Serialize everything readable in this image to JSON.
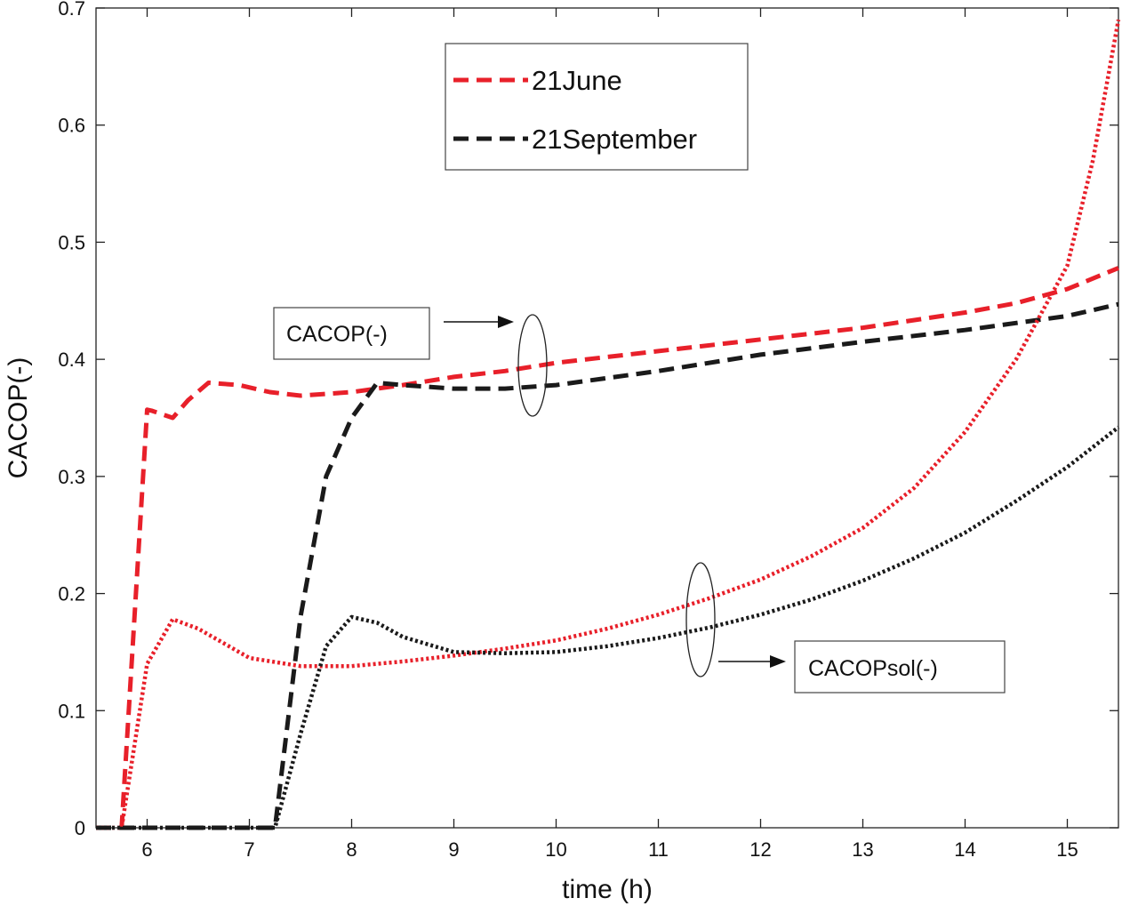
{
  "chart_data": {
    "type": "line",
    "title": "",
    "xlabel": "time (h)",
    "ylabel": "CACOP(-)",
    "xlim": [
      5.5,
      15.5
    ],
    "ylim": [
      0,
      0.7
    ],
    "xticks": [
      6,
      7,
      8,
      9,
      10,
      11,
      12,
      13,
      14,
      15
    ],
    "yticks": [
      0,
      0.1,
      0.2,
      0.3,
      0.4,
      0.5,
      0.6,
      0.7
    ],
    "ytick_labels": [
      "0",
      "0.1",
      "0.2",
      "0.3",
      "0.4",
      "0.5",
      "0.6",
      "0.7"
    ],
    "grid": false,
    "legend_position": "top-center",
    "legend": [
      {
        "label": "21June",
        "color": "#e8202a",
        "style": "dashed"
      },
      {
        "label": "21September",
        "color": "#1a1a1a",
        "style": "dashed"
      }
    ],
    "annotations": [
      {
        "label": "CACOP(-)",
        "points_to": "dashed curves near t=9.75"
      },
      {
        "label": "CACOPsol(-)",
        "points_to": "dotted curves near t=11.4"
      }
    ],
    "series": [
      {
        "name": "CACOP 21June",
        "color": "#e8202a",
        "style": "dashed",
        "x": [
          5.5,
          5.75,
          6.0,
          6.05,
          6.25,
          6.4,
          6.6,
          6.9,
          7.2,
          7.5,
          8.0,
          8.5,
          9.0,
          9.5,
          10.0,
          11.0,
          12.0,
          13.0,
          14.0,
          14.5,
          15.0,
          15.5
        ],
        "y": [
          0.0,
          0.0,
          0.357,
          0.356,
          0.35,
          0.365,
          0.38,
          0.378,
          0.372,
          0.369,
          0.372,
          0.378,
          0.385,
          0.39,
          0.397,
          0.407,
          0.417,
          0.427,
          0.44,
          0.448,
          0.46,
          0.478
        ]
      },
      {
        "name": "CACOP 21September",
        "color": "#1a1a1a",
        "style": "dashed",
        "x": [
          5.5,
          7.25,
          7.5,
          7.75,
          8.0,
          8.25,
          8.5,
          9.0,
          9.5,
          10.0,
          11.0,
          12.0,
          13.0,
          14.0,
          15.0,
          15.5
        ],
        "y": [
          0.0,
          0.0,
          0.18,
          0.3,
          0.35,
          0.38,
          0.378,
          0.375,
          0.375,
          0.378,
          0.39,
          0.404,
          0.415,
          0.425,
          0.437,
          0.447
        ]
      },
      {
        "name": "CACOPsol 21June",
        "color": "#e8202a",
        "style": "dotted",
        "x": [
          5.5,
          5.75,
          6.0,
          6.25,
          6.5,
          7.0,
          7.5,
          8.0,
          8.5,
          9.0,
          9.5,
          10.0,
          10.5,
          11.0,
          11.5,
          12.0,
          12.5,
          13.0,
          13.5,
          14.0,
          14.5,
          15.0,
          15.25,
          15.5
        ],
        "y": [
          0.0,
          0.0,
          0.14,
          0.178,
          0.17,
          0.145,
          0.138,
          0.138,
          0.142,
          0.147,
          0.153,
          0.16,
          0.17,
          0.182,
          0.196,
          0.212,
          0.232,
          0.256,
          0.29,
          0.338,
          0.4,
          0.48,
          0.57,
          0.69
        ]
      },
      {
        "name": "CACOPsol 21September",
        "color": "#1a1a1a",
        "style": "dotted",
        "x": [
          5.5,
          7.25,
          7.5,
          7.75,
          8.0,
          8.25,
          8.5,
          9.0,
          9.5,
          10.0,
          10.5,
          11.0,
          11.5,
          12.0,
          12.5,
          13.0,
          13.5,
          14.0,
          14.5,
          15.0,
          15.5
        ],
        "y": [
          0.0,
          0.0,
          0.08,
          0.155,
          0.18,
          0.175,
          0.163,
          0.15,
          0.149,
          0.15,
          0.155,
          0.162,
          0.171,
          0.182,
          0.195,
          0.211,
          0.23,
          0.252,
          0.279,
          0.308,
          0.342
        ]
      }
    ]
  }
}
